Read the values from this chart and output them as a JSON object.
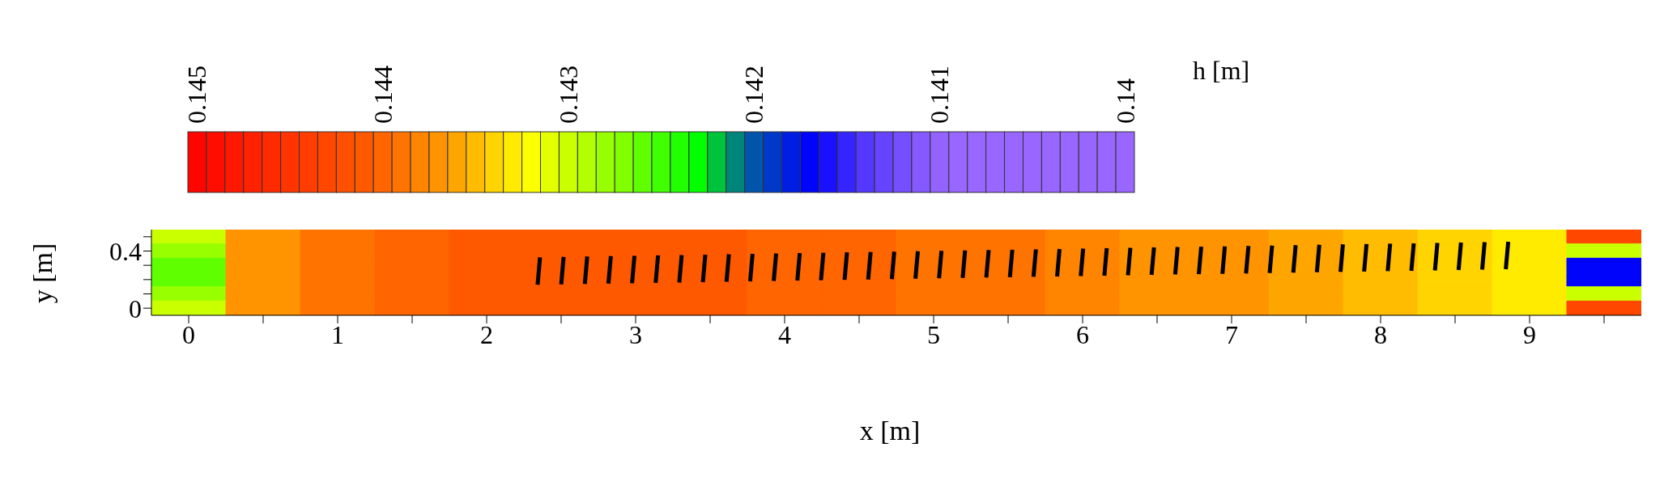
{
  "chart_data": {
    "type": "heatmap",
    "xlabel": "x [m]",
    "ylabel": "y [m]",
    "clabel": "h [m]",
    "categories": [
      "0",
      null,
      "1",
      null,
      "2",
      null,
      "3",
      null,
      "4",
      null,
      "5",
      null,
      "6",
      null,
      "7",
      null,
      "8",
      null,
      "9",
      null
    ],
    "y_categories": [
      null,
      "0.4",
      null,
      null,
      null,
      "0"
    ],
    "cells": [
      [
        0.143,
        0.1437,
        0.1439,
        0.144,
        0.1441,
        0.1441,
        0.1441,
        0.1441,
        0.144,
        0.144,
        0.1439,
        0.1439,
        0.1438,
        0.1437,
        0.1437,
        0.1436,
        0.1435,
        0.1434,
        0.1433,
        0.1443
      ],
      [
        0.1428,
        0.1437,
        0.1439,
        0.144,
        0.1441,
        0.1441,
        0.1441,
        0.1441,
        0.144,
        0.144,
        0.1439,
        0.1439,
        0.1438,
        0.1437,
        0.1437,
        0.1436,
        0.1435,
        0.1434,
        0.1433,
        0.143
      ],
      [
        0.1426,
        0.1437,
        0.1439,
        0.144,
        0.1441,
        0.1441,
        0.1441,
        0.1441,
        0.144,
        0.144,
        0.1439,
        0.1439,
        0.1438,
        0.1437,
        0.1437,
        0.1436,
        0.1435,
        0.1434,
        0.1433,
        0.1417
      ],
      [
        0.1426,
        0.1437,
        0.1439,
        0.144,
        0.1441,
        0.1441,
        0.1441,
        0.1441,
        0.144,
        0.144,
        0.1439,
        0.1439,
        0.1438,
        0.1437,
        0.1437,
        0.1436,
        0.1435,
        0.1434,
        0.1433,
        0.1417
      ],
      [
        0.1428,
        0.1437,
        0.1439,
        0.144,
        0.1441,
        0.1441,
        0.1441,
        0.1441,
        0.144,
        0.144,
        0.1439,
        0.1439,
        0.1438,
        0.1437,
        0.1437,
        0.1436,
        0.1435,
        0.1434,
        0.1433,
        0.143
      ],
      [
        0.143,
        0.1437,
        0.1439,
        0.144,
        0.1441,
        0.1441,
        0.1441,
        0.1441,
        0.144,
        0.144,
        0.1439,
        0.1439,
        0.1438,
        0.1437,
        0.1437,
        0.1436,
        0.1435,
        0.1434,
        0.1433,
        0.1443
      ]
    ],
    "clim": [
      0.14505,
      0.13995
    ],
    "cticks": [
      0.145,
      0.144,
      0.143,
      0.142,
      0.141,
      0.14
    ]
  }
}
